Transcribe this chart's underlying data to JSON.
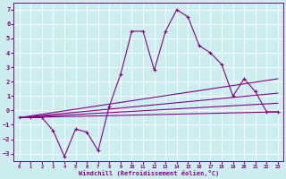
{
  "xlabel": "Windchill (Refroidissement éolien,°C)",
  "line_color": "#880088",
  "bg_color": "#cceeee",
  "grid_color": "#aadddd",
  "ylim": [
    -3.5,
    7.5
  ],
  "xlim": [
    -0.5,
    23.5
  ],
  "yticks": [
    -3,
    -2,
    -1,
    0,
    1,
    2,
    3,
    4,
    5,
    6,
    7
  ],
  "xticks": [
    0,
    1,
    2,
    3,
    4,
    5,
    6,
    7,
    8,
    9,
    10,
    11,
    12,
    13,
    14,
    15,
    16,
    17,
    18,
    19,
    20,
    21,
    22,
    23
  ],
  "hours": [
    0,
    1,
    2,
    3,
    4,
    5,
    6,
    7,
    8,
    9,
    10,
    11,
    12,
    13,
    14,
    15,
    16,
    17,
    18,
    19,
    20,
    21,
    22,
    23
  ],
  "main_line": [
    -0.5,
    -0.5,
    -0.5,
    -1.4,
    -3.2,
    -1.3,
    -1.5,
    -2.8,
    0.3,
    2.5,
    5.5,
    5.5,
    2.8,
    5.5,
    7.0,
    6.5,
    4.5,
    4.0,
    3.2,
    1.0,
    2.2,
    1.3,
    -0.1,
    -0.1
  ],
  "trend1_x": [
    0,
    23
  ],
  "trend1_y": [
    -0.5,
    -0.1
  ],
  "trend2_x": [
    0,
    23
  ],
  "trend2_y": [
    -0.5,
    0.5
  ],
  "trend3_x": [
    0,
    23
  ],
  "trend3_y": [
    -0.5,
    1.2
  ],
  "trend4_x": [
    0,
    23
  ],
  "trend4_y": [
    -0.5,
    2.2
  ]
}
